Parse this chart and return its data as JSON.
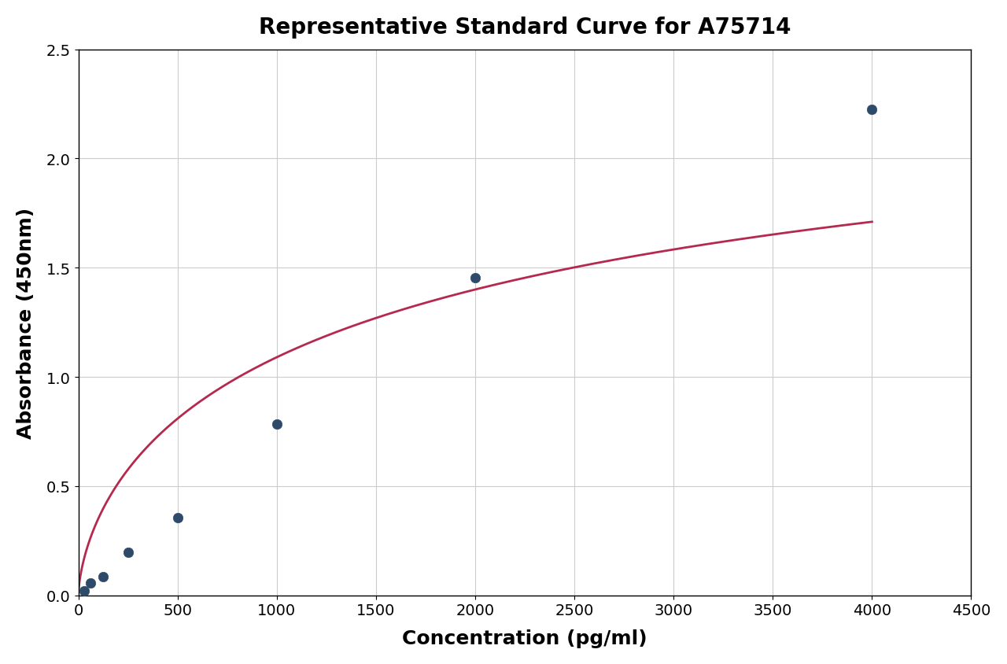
{
  "title": "Representative Standard Curve for A75714",
  "xlabel": "Concentration (pg/ml)",
  "ylabel": "Absorbance (450nm)",
  "x_data": [
    31.25,
    62.5,
    125,
    250,
    500,
    1000,
    2000,
    4000
  ],
  "y_data": [
    0.02,
    0.055,
    0.085,
    0.195,
    0.355,
    0.785,
    1.455,
    2.225
  ],
  "xlim": [
    0,
    4500
  ],
  "ylim": [
    0.0,
    2.5
  ],
  "xticks": [
    0,
    500,
    1000,
    1500,
    2000,
    2500,
    3000,
    3500,
    4000,
    4500
  ],
  "yticks": [
    0.0,
    0.5,
    1.0,
    1.5,
    2.0,
    2.5
  ],
  "curve_color": "#b5294e",
  "dot_color": "#2e4a6b",
  "dot_edge_color": "#2e4a6b",
  "grid_color": "#cccccc",
  "background_color": "#ffffff",
  "title_fontsize": 20,
  "axis_label_fontsize": 18,
  "tick_fontsize": 14,
  "dot_size": 80,
  "line_width": 2.0,
  "curve_x_end": 4000
}
